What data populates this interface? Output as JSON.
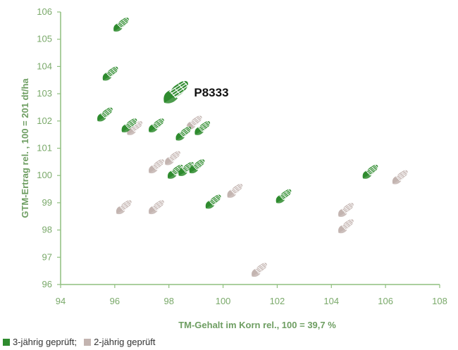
{
  "chart_data": {
    "type": "scatter",
    "xlabel": "TM-Gehalt im Korn rel., 100 = 39,7 %",
    "ylabel": "GTM-Ertrag rel. , 100 = 201 dt/ha",
    "xlim": [
      94,
      108
    ],
    "ylim": [
      96,
      106
    ],
    "x_ticks": [
      "94",
      "96",
      "98",
      "100",
      "102",
      "104",
      "106",
      "108"
    ],
    "y_ticks": [
      "96",
      "97",
      "98",
      "99",
      "100",
      "101",
      "102",
      "103",
      "104",
      "105",
      "106"
    ],
    "grid": false,
    "legend_placement": "bottom-left",
    "series": [
      {
        "name": "3-jährig geprüft;",
        "color": "#2e8b2e",
        "points": [
          {
            "x": 96.2,
            "y": 105.5
          },
          {
            "x": 95.8,
            "y": 103.7
          },
          {
            "x": 95.6,
            "y": 102.2
          },
          {
            "x": 96.5,
            "y": 101.8
          },
          {
            "x": 97.5,
            "y": 101.8
          },
          {
            "x": 98.5,
            "y": 101.5
          },
          {
            "x": 99.2,
            "y": 101.7
          },
          {
            "x": 98.2,
            "y": 100.1
          },
          {
            "x": 98.6,
            "y": 100.2
          },
          {
            "x": 99.0,
            "y": 100.3
          },
          {
            "x": 99.6,
            "y": 99.0
          },
          {
            "x": 102.2,
            "y": 99.2
          },
          {
            "x": 105.4,
            "y": 100.1
          }
        ]
      },
      {
        "name": "2-jährig geprüft",
        "color": "#c3b4b0",
        "points": [
          {
            "x": 96.7,
            "y": 101.7
          },
          {
            "x": 97.5,
            "y": 100.3
          },
          {
            "x": 98.1,
            "y": 100.6
          },
          {
            "x": 98.9,
            "y": 101.9
          },
          {
            "x": 100.4,
            "y": 99.4
          },
          {
            "x": 96.3,
            "y": 98.8
          },
          {
            "x": 97.5,
            "y": 98.8
          },
          {
            "x": 101.3,
            "y": 96.5
          },
          {
            "x": 104.5,
            "y": 98.7
          },
          {
            "x": 104.5,
            "y": 98.1
          },
          {
            "x": 106.5,
            "y": 99.9
          }
        ]
      }
    ],
    "highlight": {
      "label": "P8333",
      "x": 98.2,
      "y": 103.0,
      "color": "#2e8b2e"
    }
  }
}
